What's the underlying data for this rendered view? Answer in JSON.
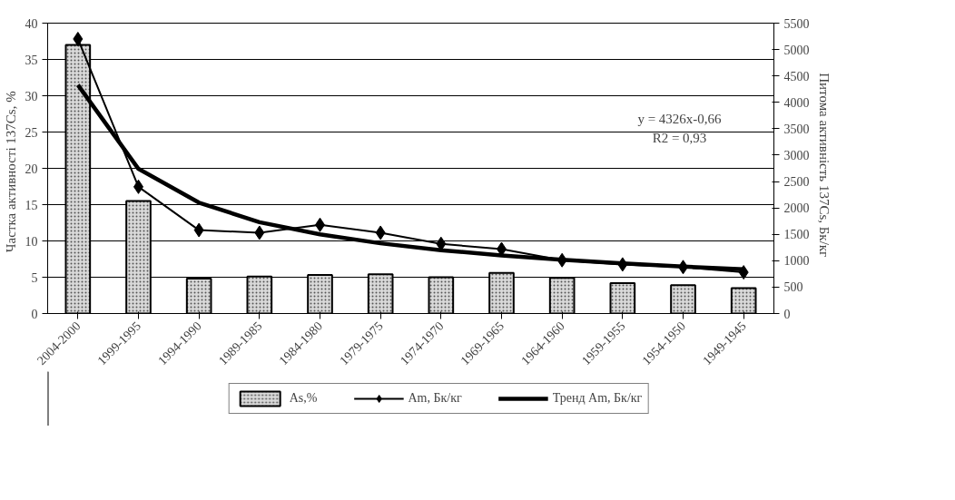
{
  "chart_data": {
    "type": "bar",
    "categories": [
      "2004-2000",
      "1999-1995",
      "1994-1990",
      "1989-1985",
      "1984-1980",
      "1979-1975",
      "1974-1970",
      "1969-1965",
      "1964-1960",
      "1959-1955",
      "1954-1950",
      "1949-1945"
    ],
    "ylabel": "Частка активності   137Cs, %",
    "y2label": "Питома активність   137Cs, Бк/кг",
    "ylim": [
      0,
      40
    ],
    "yticks": [
      0,
      5,
      10,
      15,
      20,
      25,
      30,
      35,
      40
    ],
    "y2lim": [
      0,
      5500
    ],
    "y2ticks": [
      0,
      500,
      1000,
      1500,
      2000,
      2500,
      3000,
      3500,
      4000,
      4500,
      5000,
      5500
    ],
    "grid": "y",
    "legend": "bottom",
    "annotations": [
      "y = 4326x-0,66",
      "R2 = 0,93"
    ],
    "series": [
      {
        "name": "As,%",
        "color": "#d9d9d9",
        "values": [
          37,
          15.5,
          4.8,
          5.1,
          5.3,
          5.4,
          5.0,
          5.6,
          4.9,
          4.2,
          3.9,
          3.5
        ]
      },
      {
        "name": "Am, Бк/кг",
        "type": "line",
        "axis": "y2",
        "color": "#000000",
        "marker": "diamond",
        "values": [
          5200,
          2400,
          1580,
          1530,
          1680,
          1530,
          1320,
          1220,
          1010,
          930,
          880,
          780
        ]
      },
      {
        "name": "Тренд Am, Бк/кг",
        "type": "line",
        "axis": "y2",
        "color": "#000000",
        "marker": "none",
        "values": [
          4330,
          2740,
          2100,
          1730,
          1500,
          1330,
          1200,
          1100,
          1020,
          950,
          890,
          840
        ]
      }
    ]
  }
}
